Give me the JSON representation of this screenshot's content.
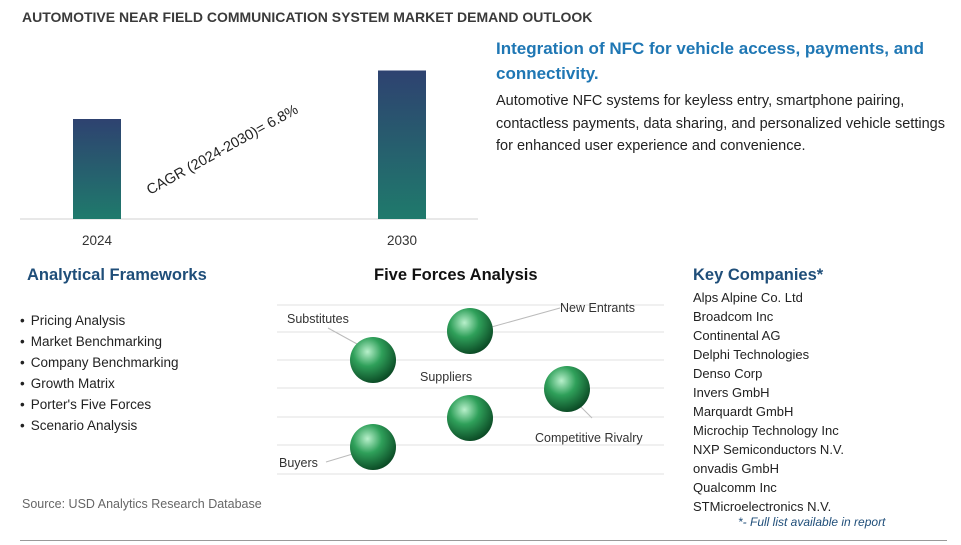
{
  "title": "AUTOMOTIVE NEAR FIELD COMMUNICATION SYSTEM MARKET DEMAND OUTLOOK",
  "chart_data": {
    "type": "bar",
    "categories": [
      "2024",
      "2030"
    ],
    "values": [
      1.0,
      1.485
    ],
    "ylim": [
      0,
      1.6
    ],
    "annotation": "CAGR (2024-2030)=   6.8%",
    "colors": {
      "bar_top": "#2e4270",
      "bar_bottom": "#1f7a6c"
    }
  },
  "headline": "Integration of NFC for vehicle access, payments, and connectivity.",
  "description": "Automotive NFC systems for keyless entry, smartphone pairing, contactless payments, data sharing, and personalized vehicle settings for enhanced user experience and convenience.",
  "frameworks": {
    "title": "Analytical Frameworks",
    "items": [
      "Pricing Analysis",
      "Market Benchmarking",
      "Company Benchmarking",
      "Growth Matrix",
      "Porter's Five Forces",
      "Scenario Analysis"
    ]
  },
  "five_forces": {
    "title": "Five Forces Analysis",
    "labels": {
      "substitutes": "Substitutes",
      "new_entrants": "New Entrants",
      "suppliers": "Suppliers",
      "competitive_rivalry": "Competitive Rivalry",
      "buyers": "Buyers"
    },
    "colors": {
      "sphere_light": "#b8f0cb",
      "sphere_mid": "#2fa05a",
      "sphere_dark": "#0b4a25",
      "line": "#cccccc"
    }
  },
  "key_companies": {
    "title": "Key Companies*",
    "items": [
      "Alps Alpine Co. Ltd",
      "Broadcom Inc",
      "Continental AG",
      "Delphi Technologies",
      "Denso Corp",
      "Invers GmbH",
      "Marquardt GmbH",
      "Microchip Technology Inc",
      "NXP Semiconductors N.V.",
      "onvadis GmbH",
      "Qualcomm Inc",
      "STMicroelectronics N.V."
    ],
    "note": "*- Full list available in report"
  },
  "source": "Source: USD Analytics Research Database"
}
